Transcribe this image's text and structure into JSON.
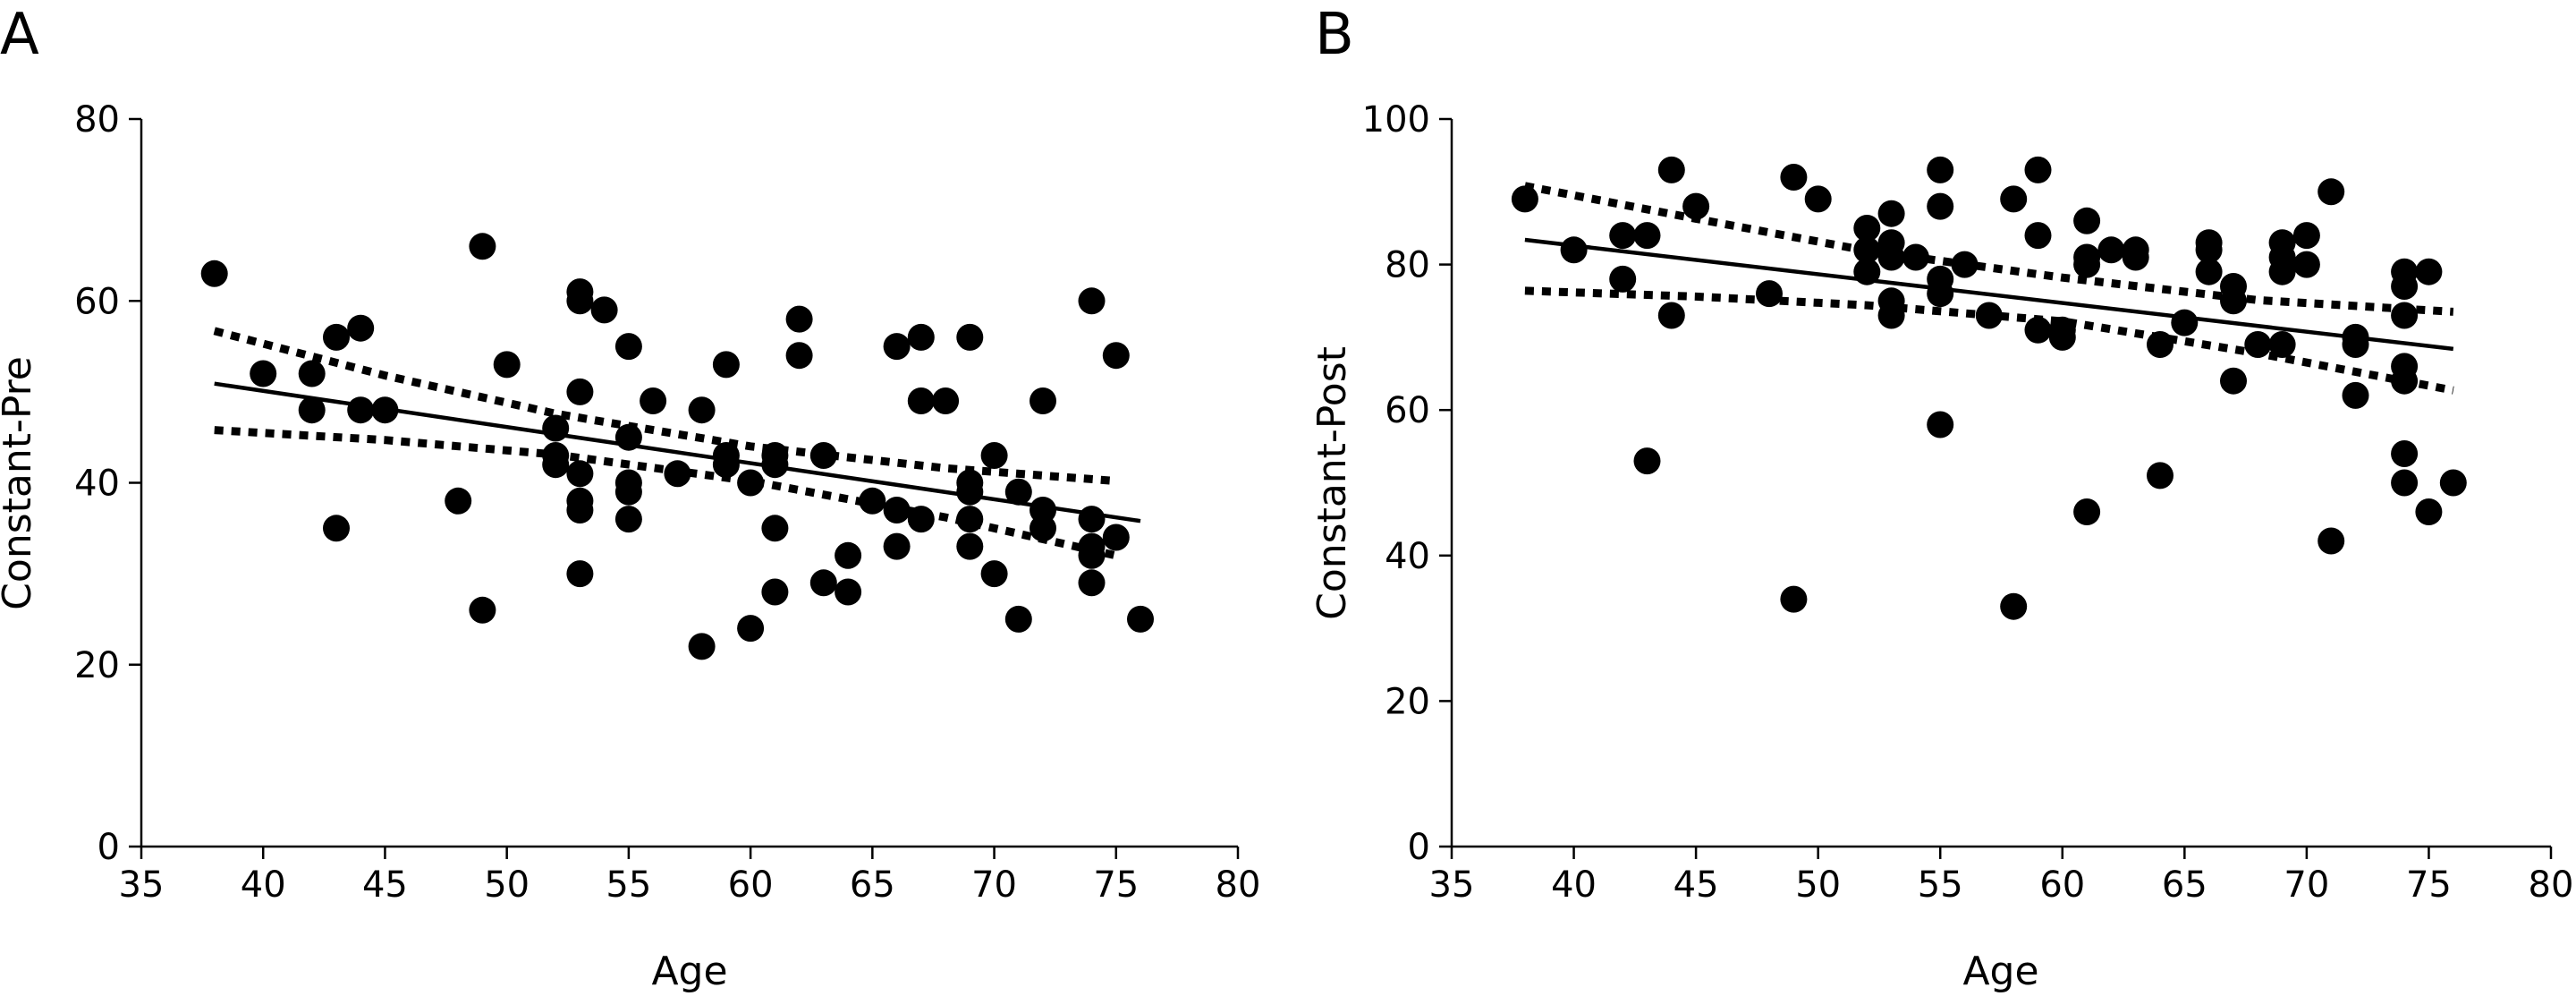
{
  "chart_data": [
    {
      "panel": "A",
      "type": "scatter",
      "xlabel": "Age",
      "ylabel": "Constant-Pre",
      "xlim": [
        35,
        80
      ],
      "ylim": [
        0,
        80
      ],
      "xticks": [
        35,
        40,
        45,
        50,
        55,
        60,
        65,
        70,
        75,
        80
      ],
      "yticks": [
        0,
        20,
        40,
        60,
        80
      ],
      "points": [
        [
          38,
          63
        ],
        [
          40,
          52
        ],
        [
          42,
          52
        ],
        [
          42,
          48
        ],
        [
          43,
          56
        ],
        [
          43,
          35
        ],
        [
          44,
          57
        ],
        [
          44,
          48
        ],
        [
          45,
          48
        ],
        [
          48,
          38
        ],
        [
          49,
          66
        ],
        [
          49,
          26
        ],
        [
          50,
          53
        ],
        [
          52,
          46
        ],
        [
          52,
          43
        ],
        [
          52,
          42
        ],
        [
          53,
          61
        ],
        [
          53,
          60
        ],
        [
          53,
          50
        ],
        [
          53,
          41
        ],
        [
          53,
          38
        ],
        [
          53,
          37
        ],
        [
          53,
          30
        ],
        [
          54,
          59
        ],
        [
          55,
          55
        ],
        [
          55,
          45
        ],
        [
          55,
          40
        ],
        [
          55,
          39
        ],
        [
          55,
          36
        ],
        [
          56,
          49
        ],
        [
          57,
          41
        ],
        [
          58,
          48
        ],
        [
          58,
          22
        ],
        [
          59,
          53
        ],
        [
          59,
          43
        ],
        [
          59,
          42
        ],
        [
          60,
          40
        ],
        [
          60,
          24
        ],
        [
          61,
          43
        ],
        [
          61,
          42
        ],
        [
          61,
          35
        ],
        [
          61,
          28
        ],
        [
          62,
          58
        ],
        [
          62,
          54
        ],
        [
          63,
          43
        ],
        [
          63,
          29
        ],
        [
          64,
          32
        ],
        [
          64,
          28
        ],
        [
          65,
          38
        ],
        [
          66,
          55
        ],
        [
          66,
          37
        ],
        [
          66,
          33
        ],
        [
          67,
          56
        ],
        [
          67,
          49
        ],
        [
          67,
          36
        ],
        [
          68,
          49
        ],
        [
          69,
          56
        ],
        [
          69,
          40
        ],
        [
          69,
          39
        ],
        [
          69,
          36
        ],
        [
          69,
          33
        ],
        [
          70,
          43
        ],
        [
          70,
          30
        ],
        [
          71,
          39
        ],
        [
          71,
          25
        ],
        [
          72,
          49
        ],
        [
          72,
          37
        ],
        [
          72,
          35
        ],
        [
          74,
          60
        ],
        [
          74,
          36
        ],
        [
          74,
          33
        ],
        [
          74,
          32
        ],
        [
          74,
          29
        ],
        [
          75,
          54
        ],
        [
          75,
          34
        ],
        [
          76,
          25
        ]
      ],
      "fit": [
        [
          38,
          50.9
        ],
        [
          76,
          35.8
        ]
      ],
      "ci_upper": [
        [
          38,
          56.7
        ],
        [
          45,
          51.8
        ],
        [
          52,
          47.6
        ],
        [
          60,
          44.0
        ],
        [
          68,
          41.6
        ],
        [
          75,
          40.2
        ]
      ],
      "ci_lower": [
        [
          38,
          45.8
        ],
        [
          45,
          44.7
        ],
        [
          52,
          43.1
        ],
        [
          60,
          40.2
        ],
        [
          68,
          36.2
        ],
        [
          75,
          32.0
        ]
      ]
    },
    {
      "panel": "B",
      "type": "scatter",
      "xlabel": "Age",
      "ylabel": "Constant-Post",
      "xlim": [
        35,
        80
      ],
      "ylim": [
        0,
        100
      ],
      "xticks": [
        35,
        40,
        45,
        50,
        55,
        60,
        65,
        70,
        75,
        80
      ],
      "yticks": [
        0,
        20,
        40,
        60,
        80,
        100
      ],
      "points": [
        [
          38,
          89
        ],
        [
          40,
          82
        ],
        [
          42,
          84
        ],
        [
          42,
          78
        ],
        [
          43,
          84
        ],
        [
          43,
          53
        ],
        [
          44,
          93
        ],
        [
          44,
          73
        ],
        [
          45,
          88
        ],
        [
          48,
          76
        ],
        [
          49,
          92
        ],
        [
          49,
          34
        ],
        [
          50,
          89
        ],
        [
          52,
          85
        ],
        [
          52,
          82
        ],
        [
          52,
          79
        ],
        [
          53,
          87
        ],
        [
          53,
          83
        ],
        [
          53,
          81
        ],
        [
          53,
          75
        ],
        [
          53,
          73
        ],
        [
          54,
          81
        ],
        [
          55,
          93
        ],
        [
          55,
          88
        ],
        [
          55,
          78
        ],
        [
          55,
          76
        ],
        [
          55,
          58
        ],
        [
          56,
          80
        ],
        [
          57,
          73
        ],
        [
          58,
          89
        ],
        [
          58,
          33
        ],
        [
          59,
          93
        ],
        [
          59,
          84
        ],
        [
          59,
          71
        ],
        [
          60,
          71
        ],
        [
          60,
          70
        ],
        [
          61,
          86
        ],
        [
          61,
          81
        ],
        [
          61,
          80
        ],
        [
          61,
          46
        ],
        [
          62,
          82
        ],
        [
          63,
          82
        ],
        [
          63,
          81
        ],
        [
          64,
          69
        ],
        [
          64,
          51
        ],
        [
          65,
          72
        ],
        [
          66,
          83
        ],
        [
          66,
          82
        ],
        [
          66,
          79
        ],
        [
          67,
          77
        ],
        [
          67,
          75
        ],
        [
          67,
          64
        ],
        [
          68,
          69
        ],
        [
          69,
          83
        ],
        [
          69,
          81
        ],
        [
          69,
          79
        ],
        [
          69,
          69
        ],
        [
          70,
          84
        ],
        [
          70,
          80
        ],
        [
          71,
          90
        ],
        [
          71,
          42
        ],
        [
          72,
          70
        ],
        [
          72,
          69
        ],
        [
          72,
          62
        ],
        [
          74,
          79
        ],
        [
          74,
          77
        ],
        [
          74,
          73
        ],
        [
          74,
          66
        ],
        [
          74,
          64
        ],
        [
          74,
          54
        ],
        [
          74,
          50
        ],
        [
          75,
          79
        ],
        [
          75,
          46
        ],
        [
          76,
          50
        ]
      ],
      "fit": [
        [
          38,
          83.4
        ],
        [
          76,
          68.4
        ]
      ],
      "ci_upper": [
        [
          38,
          90.8
        ],
        [
          45,
          86.3
        ],
        [
          52,
          81.9
        ],
        [
          60,
          78.2
        ],
        [
          68,
          75.1
        ],
        [
          76,
          73.5
        ]
      ],
      "ci_lower": [
        [
          38,
          76.4
        ],
        [
          45,
          75.6
        ],
        [
          52,
          74.4
        ],
        [
          60,
          72.2
        ],
        [
          68,
          67.8
        ],
        [
          76,
          62.7
        ]
      ]
    }
  ]
}
